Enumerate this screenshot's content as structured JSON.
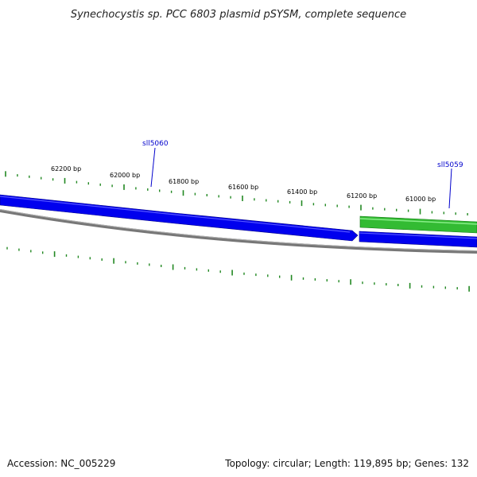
{
  "title": "Synechocystis sp. PCC 6803 plasmid pSYSM, complete sequence",
  "footer": {
    "accession": "Accession: NC_005229",
    "summary": "Topology: circular; Length: 119,895 bp; Genes: 132"
  },
  "ticks": {
    "labels": [
      "62200 bp",
      "62000 bp",
      "61800 bp",
      "61600 bp",
      "61400 bp",
      "61200 bp",
      "61000 bp"
    ],
    "color": "#228822"
  },
  "genes": [
    {
      "name": "sll5060",
      "strand": "reverse",
      "color": "#0000ee"
    },
    {
      "name": "sll5059",
      "strand": "forward",
      "color": "#33bb33"
    }
  ],
  "colors": {
    "backbone": "#777777",
    "reverse_gene": "#0000ee",
    "forward_gene": "#33bb33",
    "gene_label": "#0000cc"
  }
}
